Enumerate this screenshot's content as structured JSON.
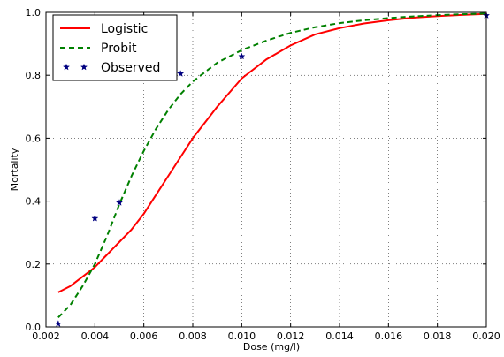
{
  "chart_data": {
    "type": "line",
    "xlabel": "Dose (mg/l)",
    "ylabel": "Mortality",
    "xlim": [
      0.002,
      0.02
    ],
    "ylim": [
      0.0,
      1.0
    ],
    "x_ticks": [
      0.002,
      0.004,
      0.006,
      0.008,
      0.01,
      0.012,
      0.014,
      0.016,
      0.018,
      0.02
    ],
    "x_tick_labels": [
      "0.002",
      "0.004",
      "0.006",
      "0.008",
      "0.010",
      "0.012",
      "0.014",
      "0.016",
      "0.018",
      "0.020"
    ],
    "y_ticks": [
      0.0,
      0.2,
      0.4,
      0.6,
      0.8,
      1.0
    ],
    "y_tick_labels": [
      "0.0",
      "0.2",
      "0.4",
      "0.6",
      "0.8",
      "1.0"
    ],
    "grid": true,
    "legend_placement": "top-left",
    "series": [
      {
        "name": "Logistic",
        "style": "solid",
        "color": "#ff0000",
        "x": [
          0.0025,
          0.003,
          0.0035,
          0.004,
          0.0045,
          0.005,
          0.0055,
          0.006,
          0.0065,
          0.007,
          0.0075,
          0.008,
          0.0085,
          0.009,
          0.0095,
          0.01,
          0.011,
          0.012,
          0.013,
          0.014,
          0.015,
          0.016,
          0.017,
          0.018,
          0.019,
          0.02
        ],
        "values": [
          0.11,
          0.13,
          0.16,
          0.19,
          0.23,
          0.27,
          0.31,
          0.36,
          0.42,
          0.48,
          0.54,
          0.6,
          0.65,
          0.7,
          0.745,
          0.79,
          0.85,
          0.895,
          0.93,
          0.95,
          0.965,
          0.975,
          0.983,
          0.988,
          0.992,
          0.995
        ]
      },
      {
        "name": "Probit",
        "style": "dashed",
        "color": "#008000",
        "x": [
          0.0025,
          0.003,
          0.0035,
          0.004,
          0.0045,
          0.005,
          0.0055,
          0.006,
          0.0065,
          0.007,
          0.0075,
          0.008,
          0.0085,
          0.009,
          0.0095,
          0.01,
          0.011,
          0.012,
          0.013,
          0.014,
          0.015,
          0.016,
          0.017,
          0.018,
          0.019,
          0.02
        ],
        "values": [
          0.03,
          0.07,
          0.13,
          0.2,
          0.29,
          0.39,
          0.48,
          0.56,
          0.63,
          0.69,
          0.74,
          0.78,
          0.81,
          0.84,
          0.86,
          0.88,
          0.91,
          0.935,
          0.953,
          0.966,
          0.975,
          0.982,
          0.987,
          0.991,
          0.994,
          0.996
        ]
      },
      {
        "name": "Observed",
        "style": "markers",
        "marker": "star",
        "color": "#000080",
        "x": [
          0.0025,
          0.004,
          0.005,
          0.0075,
          0.01,
          0.02
        ],
        "values": [
          0.01,
          0.345,
          0.395,
          0.805,
          0.86,
          0.99
        ]
      }
    ]
  }
}
